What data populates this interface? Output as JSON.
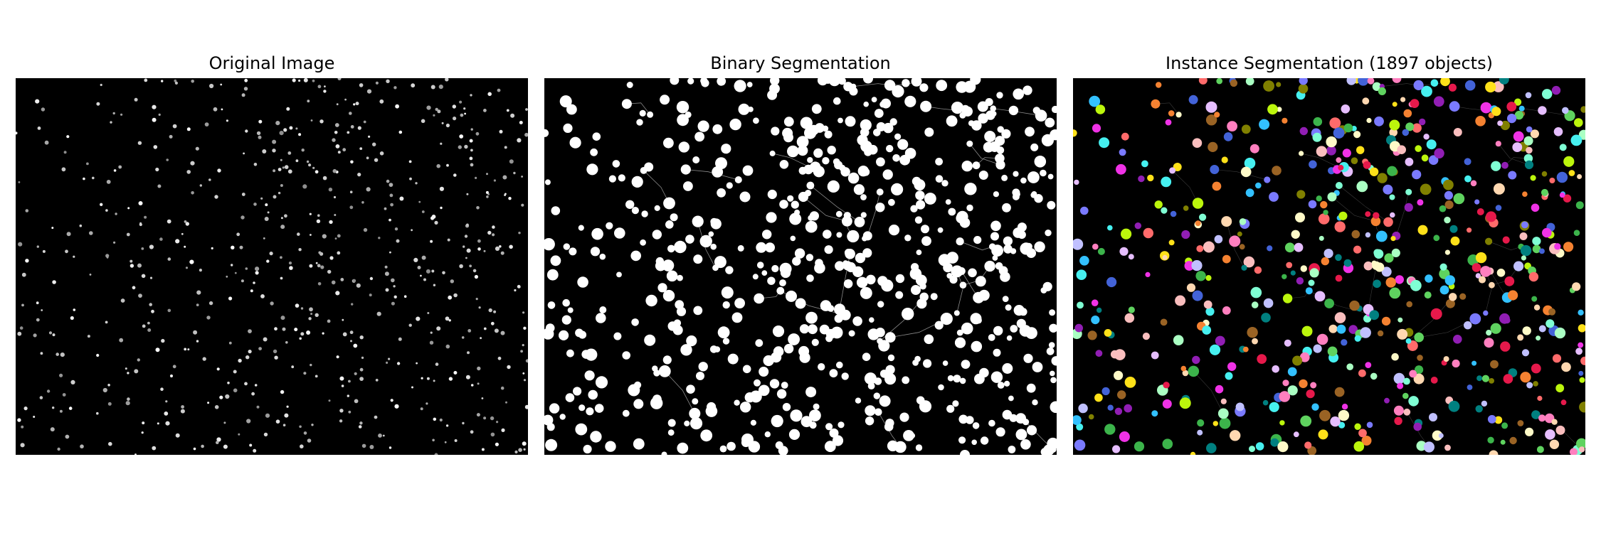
{
  "figure": {
    "panels": [
      {
        "title": "Original Image",
        "image": "grayscale fluorescence image with small bright spots on black"
      },
      {
        "title": "Binary Segmentation",
        "image": "binary mask: white blobs with thin gray watershed lines on black"
      },
      {
        "title": "Instance Segmentation (1897 objects)",
        "image": "color-labelled objects on black"
      }
    ],
    "colors": {
      "background": "#000000",
      "foreground": "#ffffff",
      "instance_palette": [
        "#e6194b",
        "#3cb44b",
        "#ffe119",
        "#4363d8",
        "#f58231",
        "#911eb4",
        "#46f0f0",
        "#f032e6",
        "#bcf60c",
        "#fabebe",
        "#008080",
        "#e6beff",
        "#9a6324",
        "#fffac8",
        "#aaffc3",
        "#808000",
        "#ffd8b1",
        "#7a7aff",
        "#5fd35f",
        "#ff7fbf",
        "#33c1ff",
        "#c0c0ff",
        "#ff6b6b",
        "#7fffd4"
      ]
    }
  }
}
